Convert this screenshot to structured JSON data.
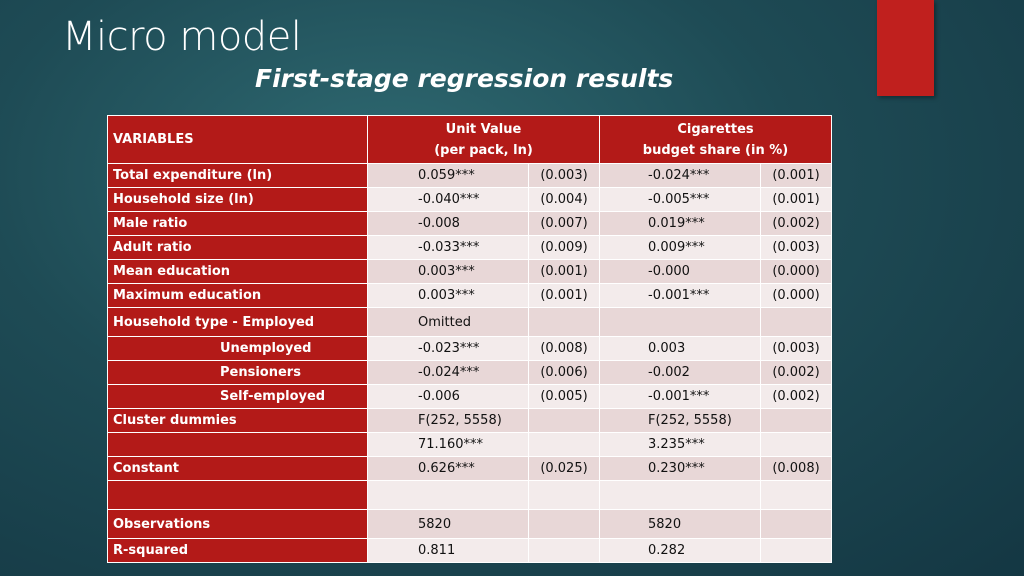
{
  "slide": {
    "title": "Micro model",
    "subtitle": "First-stage regression results"
  },
  "table": {
    "header": {
      "variables": "VARIABLES",
      "col1_line1": "Unit Value",
      "col1_line2": "(per pack, ln)",
      "col2_line1": "Cigarettes",
      "col2_line2": "budget share (in %)"
    },
    "rows": [
      {
        "label": "Total expenditure (ln)",
        "v1": "0.059***",
        "v2": "(0.003)",
        "v3": "-0.024***",
        "v4": "(0.001)"
      },
      {
        "label": "Household size (ln)",
        "v1": "-0.040***",
        "v2": "(0.004)",
        "v3": "-0.005***",
        "v4": "(0.001)"
      },
      {
        "label": "Male ratio",
        "v1": "-0.008",
        "v2": "(0.007)",
        "v3": "0.019***",
        "v4": "(0.002)"
      },
      {
        "label": "Adult ratio",
        "v1": "-0.033***",
        "v2": "(0.009)",
        "v3": "0.009***",
        "v4": "(0.003)"
      },
      {
        "label": "Mean education",
        "v1": "0.003***",
        "v2": "(0.001)",
        "v3": "-0.000",
        "v4": "(0.000)"
      },
      {
        "label": "Maximum education",
        "v1": "0.003***",
        "v2": "(0.001)",
        "v3": "-0.001***",
        "v4": "(0.000)"
      },
      {
        "label": "Household type - Employed",
        "v1": "Omitted",
        "v2": "",
        "v3": "",
        "v4": ""
      },
      {
        "label": "Unemployed",
        "v1": "-0.023***",
        "v2": "(0.008)",
        "v3": "0.003",
        "v4": "(0.003)"
      },
      {
        "label": "Pensioners",
        "v1": "-0.024***",
        "v2": "(0.006)",
        "v3": "-0.002",
        "v4": "(0.002)"
      },
      {
        "label": "Self-employed",
        "v1": "-0.006",
        "v2": "(0.005)",
        "v3": "-0.001***",
        "v4": "(0.002)"
      },
      {
        "label": "Cluster dummies",
        "v1": "F(252, 5558)",
        "v2": "",
        "v3": "F(252, 5558)",
        "v4": ""
      },
      {
        "label": "",
        "v1": "71.160***",
        "v2": "",
        "v3": "3.235***",
        "v4": ""
      },
      {
        "label": "Constant",
        "v1": "0.626***",
        "v2": "(0.025)",
        "v3": "0.230***",
        "v4": "(0.008)"
      },
      {
        "label": "",
        "v1": "",
        "v2": "",
        "v3": "",
        "v4": ""
      },
      {
        "label": "Observations",
        "v1": "5820",
        "v2": "",
        "v3": "5820",
        "v4": ""
      },
      {
        "label": "R-squared",
        "v1": "0.811",
        "v2": "",
        "v3": "0.282",
        "v4": ""
      }
    ]
  },
  "colors": {
    "header_red": "#b31a18",
    "accent_red": "#c0201e",
    "row_shade_a": "#e8d7d7",
    "row_shade_b": "#f3ebeb"
  }
}
